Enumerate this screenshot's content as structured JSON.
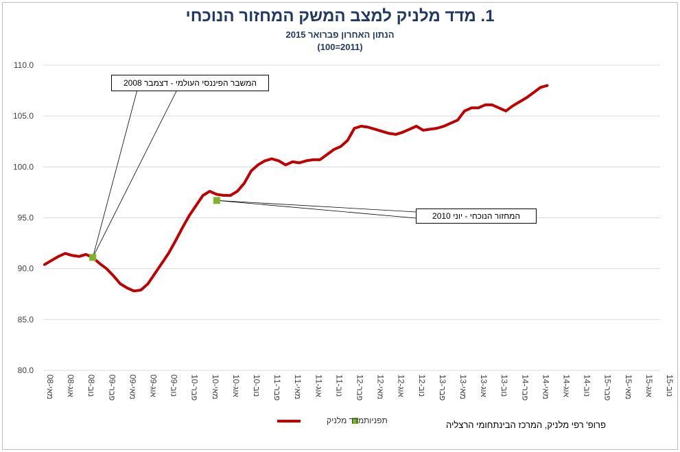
{
  "title": "1. מדד מלניק למצב המשק המחזור הנוכחי",
  "subtitle": "הנתון האחרון פברואר 2015",
  "base_note": "(2011=100)",
  "credit": "פרופ' רפי מלניק, המרכז הבינתחומי הרצליה",
  "colors": {
    "series": "#c00000",
    "markers": "#7fb32d",
    "grid": "#d9d9d9",
    "title": "#1f3864"
  },
  "annotations": [
    {
      "text": "המשבר הפיננסי העולמי - דצמבר 2008",
      "x": "דצמ-08",
      "y": 91.1
    },
    {
      "text": "המחזור הנוכחי - יוני 2010",
      "x": "יונ-10",
      "y": 96.7
    }
  ],
  "chart_data": {
    "type": "line",
    "title": "1. מדד מלניק למצב המשק המחזור הנוכחי",
    "ylim": [
      80,
      110
    ],
    "yticks": [
      "80.0",
      "85.0",
      "90.0",
      "95.0",
      "100.0",
      "105.0",
      "110.0"
    ],
    "grid": true,
    "legend_position": "bottom",
    "xtick_labels": [
      "מאי-08",
      "אוג-08",
      "נוב-08",
      "פבר-09",
      "מאי-09",
      "אוג-09",
      "נוב-09",
      "פבר-10",
      "מאי-10",
      "אוג-10",
      "נוב-10",
      "פבר-11",
      "מאי-11",
      "אוג-11",
      "נוב-11",
      "פבר-12",
      "מאי-12",
      "אוג-12",
      "נוב-12",
      "פבר-13",
      "מאי-13",
      "אוג-13",
      "נוב-13",
      "פבר-14",
      "מאי-14",
      "אוג-14",
      "נוב-14",
      "פבר-15",
      "מאי-15",
      "אוג-15",
      "נוב-15"
    ],
    "x_start": "מאי-08",
    "series": [
      {
        "name": "מדד מלניק",
        "values": [
          90.4,
          90.8,
          91.2,
          91.5,
          91.3,
          91.2,
          91.4,
          91.1,
          90.5,
          90.0,
          89.3,
          88.5,
          88.1,
          87.8,
          87.9,
          88.5,
          89.5,
          90.5,
          91.5,
          92.7,
          94.0,
          95.2,
          96.2,
          97.2,
          97.6,
          97.3,
          97.2,
          97.2,
          97.6,
          98.4,
          99.6,
          100.2,
          100.6,
          100.8,
          100.6,
          100.2,
          100.5,
          100.4,
          100.6,
          100.7,
          100.7,
          101.2,
          101.7,
          102.0,
          102.6,
          103.8,
          104.0,
          103.9,
          103.7,
          103.5,
          103.3,
          103.2,
          103.4,
          103.7,
          104.0,
          103.6,
          103.7,
          103.8,
          104.0,
          104.3,
          104.6,
          105.5,
          105.8,
          105.8,
          106.1,
          106.1,
          105.8,
          105.5,
          106.0,
          106.4,
          106.8,
          107.3,
          107.8,
          108.0
        ]
      },
      {
        "name": "תפניות",
        "points": [
          {
            "x": "דצמ-08",
            "y": 91.1
          },
          {
            "x": "יונ-10",
            "y": 96.7
          }
        ]
      }
    ]
  }
}
